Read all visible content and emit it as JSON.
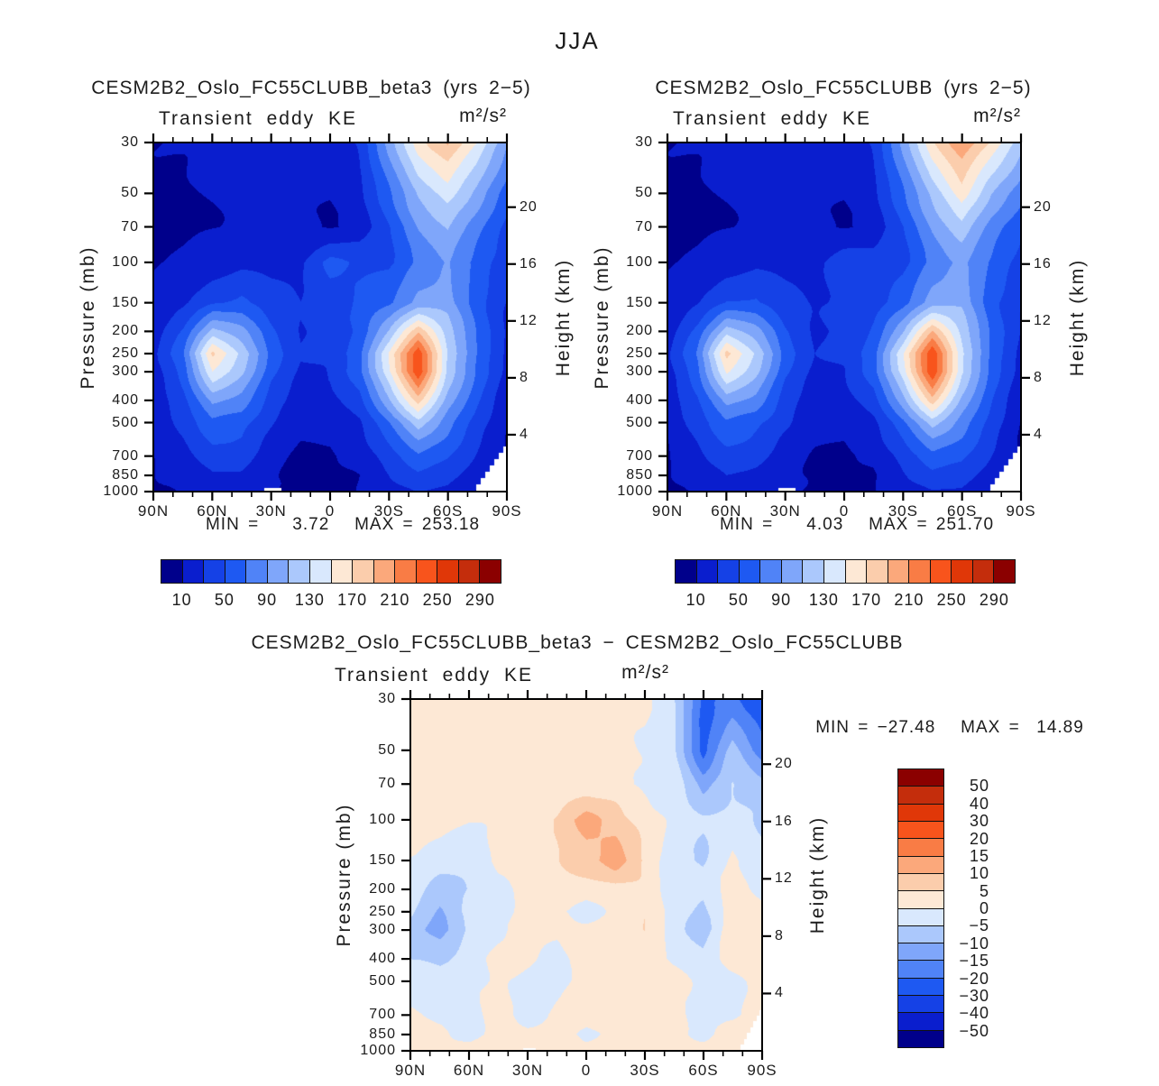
{
  "page_title": "JJA",
  "palette": [
    "#00008B",
    "#0A1ECE",
    "#1541E6",
    "#1E59F2",
    "#5083F7",
    "#7FA6FA",
    "#ABC8FC",
    "#D9E8FD",
    "#FDE8D5",
    "#FBCDAC",
    "#FBA87B",
    "#F97C45",
    "#F8541C",
    "#E03708",
    "#C42D0C",
    "#8B0000"
  ],
  "panels": [
    {
      "title": "CESM2B2_Oslo_FC55CLUBB_beta3 (yrs 2−5)",
      "subtitle": "Transient eddy KE",
      "units": "m²/s²",
      "stats": "MIN =    3.72   MAX = 253.18"
    },
    {
      "title": "CESM2B2_Oslo_FC55CLUBB (yrs 2−5)",
      "subtitle": "Transient eddy KE",
      "units": "m²/s²",
      "stats": "MIN =    4.03   MAX = 251.70"
    },
    {
      "title": "CESM2B2_Oslo_FC55CLUBB_beta3 − CESM2B2_Oslo_FC55CLUBB",
      "subtitle": "Transient eddy KE",
      "units": "m²/s²",
      "stats": "MIN = −27.48   MAX =  14.89"
    }
  ],
  "axes": {
    "pressure_label": "Pressure (mb)",
    "height_label": "Height (km)",
    "pressure_ticks": [
      "30",
      "50",
      "70",
      "100",
      "150",
      "200",
      "250",
      "300",
      "400",
      "500",
      "700",
      "850",
      "1000"
    ],
    "height_ticks": [
      "20",
      "16",
      "12",
      "8",
      "4"
    ],
    "lat_ticks": [
      "90N",
      "60N",
      "30N",
      "0",
      "30S",
      "60S",
      "90S"
    ]
  },
  "colorbars": {
    "top_labels": [
      "10",
      "50",
      "90",
      "130",
      "170",
      "210",
      "250",
      "290"
    ],
    "diff_labels": [
      "50",
      "40",
      "30",
      "20",
      "15",
      "10",
      "5",
      "0",
      "−5",
      "−10",
      "−15",
      "−20",
      "−30",
      "−40",
      "−50"
    ]
  },
  "chart_data": [
    {
      "type": "heatmap",
      "name": "CESM2B2_Oslo_FC55CLUBB_beta3 (yrs 2-5) Transient eddy KE (m2/s2)",
      "lat": [
        90,
        75,
        60,
        45,
        30,
        15,
        0,
        -15,
        -30,
        -45,
        -60,
        -75,
        -90
      ],
      "pressure": [
        30,
        50,
        70,
        100,
        150,
        200,
        250,
        300,
        400,
        500,
        700,
        850,
        1000
      ],
      "levels": [
        10,
        30,
        50,
        70,
        90,
        110,
        130,
        150,
        170,
        190,
        210,
        230,
        250,
        270,
        290
      ],
      "min": 3.72,
      "max": 253.18,
      "wobble": 3,
      "values": [
        [
          8,
          10,
          14,
          20,
          18,
          14,
          14,
          35,
          100,
          160,
          190,
          150,
          95
        ],
        [
          6,
          8,
          12,
          16,
          15,
          12,
          11,
          22,
          65,
          115,
          140,
          105,
          60
        ],
        [
          5,
          7,
          10,
          14,
          14,
          11,
          10,
          18,
          48,
          90,
          112,
          80,
          45
        ],
        [
          7,
          12,
          20,
          26,
          22,
          28,
          58,
          48,
          45,
          72,
          92,
          62,
          34
        ],
        [
          12,
          26,
          48,
          56,
          40,
          28,
          42,
          55,
          66,
          95,
          100,
          62,
          30
        ],
        [
          18,
          52,
          120,
          98,
          56,
          30,
          34,
          56,
          110,
          185,
          120,
          66,
          28
        ],
        [
          22,
          68,
          178,
          125,
          62,
          32,
          36,
          66,
          150,
          243,
          130,
          70,
          26
        ],
        [
          20,
          60,
          150,
          112,
          56,
          28,
          32,
          62,
          145,
          250,
          128,
          66,
          22
        ],
        [
          16,
          44,
          98,
          82,
          44,
          20,
          22,
          44,
          105,
          180,
          100,
          52,
          16
        ],
        [
          14,
          34,
          66,
          60,
          32,
          14,
          14,
          30,
          70,
          120,
          78,
          40,
          12
        ],
        [
          12,
          24,
          40,
          38,
          20,
          8,
          6,
          16,
          40,
          68,
          52,
          26,
          8
        ],
        [
          10,
          18,
          30,
          28,
          14,
          6,
          5,
          10,
          28,
          46,
          36,
          16,
          6
        ],
        [
          8,
          14,
          22,
          20,
          10,
          5,
          4,
          8,
          22,
          34,
          26,
          10,
          5
        ]
      ]
    },
    {
      "type": "heatmap",
      "name": "CESM2B2_Oslo_FC55CLUBB (yrs 2-5) Transient eddy KE (m2/s2)",
      "lat": [
        90,
        75,
        60,
        45,
        30,
        15,
        0,
        -15,
        -30,
        -45,
        -60,
        -75,
        -90
      ],
      "pressure": [
        30,
        50,
        70,
        100,
        150,
        200,
        250,
        300,
        400,
        500,
        700,
        850,
        1000
      ],
      "levels": [
        10,
        30,
        50,
        70,
        90,
        110,
        130,
        150,
        170,
        190,
        210,
        230,
        250,
        270,
        290
      ],
      "min": 4.03,
      "max": 251.7,
      "wobble": 3,
      "values": [
        [
          8,
          10,
          14,
          20,
          18,
          14,
          14,
          35,
          98,
          165,
          205,
          168,
          120
        ],
        [
          6,
          8,
          12,
          16,
          15,
          12,
          11,
          22,
          66,
          118,
          162,
          112,
          78
        ],
        [
          5,
          7,
          10,
          14,
          14,
          11,
          10,
          18,
          49,
          92,
          124,
          84,
          55
        ],
        [
          7,
          12,
          21,
          27,
          22,
          24,
          46,
          38,
          42,
          74,
          96,
          66,
          40
        ],
        [
          12,
          28,
          52,
          54,
          38,
          25,
          34,
          41,
          62,
          99,
          106,
          60,
          34
        ],
        [
          18,
          56,
          124,
          100,
          54,
          28,
          32,
          54,
          106,
          190,
          124,
          64,
          30
        ],
        [
          24,
          72,
          180,
          128,
          60,
          30,
          38,
          64,
          146,
          246,
          136,
          67,
          24
        ],
        [
          22,
          66,
          154,
          114,
          54,
          26,
          30,
          60,
          140,
          252,
          136,
          62,
          20
        ],
        [
          18,
          48,
          100,
          84,
          42,
          20,
          20,
          42,
          100,
          182,
          104,
          50,
          14
        ],
        [
          15,
          36,
          68,
          58,
          34,
          16,
          12,
          28,
          66,
          117,
          81,
          42,
          10
        ],
        [
          11,
          26,
          42,
          36,
          22,
          10,
          4,
          14,
          37,
          65,
          54,
          28,
          6
        ],
        [
          9,
          20,
          32,
          26,
          16,
          8,
          5,
          8,
          26,
          44,
          38,
          18,
          5
        ],
        [
          7,
          15,
          24,
          18,
          12,
          6,
          4,
          6,
          20,
          32,
          28,
          12,
          4
        ]
      ]
    },
    {
      "type": "heatmap",
      "name": "beta3 minus FC55CLUBB Transient eddy KE difference (m2/s2)",
      "lat": [
        90,
        75,
        60,
        45,
        30,
        15,
        0,
        -15,
        -30,
        -45,
        -60,
        -75,
        -90
      ],
      "pressure": [
        30,
        50,
        70,
        100,
        150,
        200,
        250,
        300,
        400,
        500,
        700,
        850,
        1000
      ],
      "levels": [
        -50,
        -40,
        -30,
        -20,
        -15,
        -10,
        -5,
        0,
        5,
        10,
        15,
        20,
        30,
        40,
        50
      ],
      "min": -27.48,
      "max": 14.89,
      "wobble": 0.9,
      "values": [
        [
          2,
          2,
          2,
          2,
          2,
          2,
          2,
          1,
          2,
          -5,
          -22,
          -18,
          -25
        ],
        [
          2,
          2,
          2,
          2,
          2,
          2,
          2,
          1,
          -1,
          -3,
          -22,
          -7,
          -18
        ],
        [
          2,
          2,
          2,
          2,
          2,
          2,
          2,
          2,
          -1,
          -2,
          -12,
          -4,
          -8
        ],
        [
          1,
          2,
          1,
          1,
          2,
          6,
          13,
          8,
          3,
          -2,
          -4,
          -4,
          -6
        ],
        [
          -1,
          -2,
          -4,
          2,
          2,
          4,
          8,
          14,
          4,
          -4,
          -6,
          2,
          -4
        ],
        [
          -3,
          -8,
          -4,
          -2,
          2,
          2,
          2,
          3,
          4,
          -5,
          -4,
          2,
          -2
        ],
        [
          -5,
          -11,
          -2,
          -3,
          2,
          1,
          -2,
          2,
          4,
          -3,
          -6,
          3,
          2
        ],
        [
          -7,
          -12,
          -4,
          -2,
          2,
          2,
          2,
          2,
          5,
          -2,
          -8,
          4,
          2
        ],
        [
          -5,
          -6,
          -2,
          2,
          2,
          -2,
          2,
          2,
          4,
          -2,
          -4,
          2,
          2
        ],
        [
          -3,
          -3,
          -2,
          2,
          -2,
          -2,
          2,
          2,
          3,
          3,
          -3,
          -2,
          2
        ],
        [
          2,
          -2,
          -2,
          2,
          -2,
          2,
          2,
          2,
          3,
          2,
          -2,
          -2,
          2
        ],
        [
          2,
          2,
          -2,
          2,
          2,
          2,
          -2,
          2,
          2,
          2,
          -2,
          2,
          2
        ],
        [
          2,
          2,
          2,
          2,
          2,
          2,
          2,
          2,
          2,
          2,
          2,
          2,
          2
        ]
      ]
    }
  ]
}
